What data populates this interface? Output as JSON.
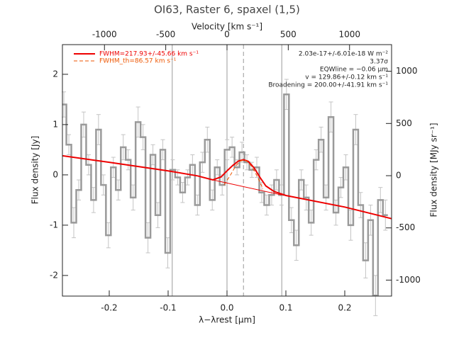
{
  "chart_data": {
    "type": "line",
    "title": "OI63, Raster 6, spaxel (1,5)",
    "x2label": "Velocity [km s⁻¹]",
    "xlabel": "λ−λrest [μm]",
    "ylabel": "Flux density [Jy]",
    "y2label": "Flux density [MJy sr⁻¹]",
    "xlim": [
      -0.2795,
      0.2795
    ],
    "ylim": [
      -2.41,
      2.59
    ],
    "x2lim": [
      -1343,
      1343
    ],
    "y2lim": [
      -1153,
      1255
    ],
    "xticks": [
      -0.2,
      -0.1,
      {
        "value": 0,
        "label": "0.0"
      },
      0.1,
      0.2
    ],
    "yticks": [
      -2,
      -1,
      0,
      1,
      2
    ],
    "x2ticks": [
      -1000,
      -500,
      0,
      500,
      1000
    ],
    "y2ticks": [
      -1000,
      -500,
      0,
      500,
      1000
    ],
    "vlines": [
      -0.093,
      0,
      0.093
    ],
    "center_line": 0.028,
    "annotations": [
      "2.03e-17+/-6.01e-18 W m⁻²",
      "3.37σ",
      "EQWline = −0.06 μm",
      "v = 129.86+/-0.12 km s⁻¹",
      "Broadening = 200.00+/-41.91 km s⁻¹"
    ],
    "series": [
      {
        "style": "step",
        "color": "#9a9a9a",
        "error_color": "#c4c4c4",
        "x": [
          -0.277,
          -0.2686,
          -0.2602,
          -0.2518,
          -0.2434,
          -0.235,
          -0.2266,
          -0.2182,
          -0.2098,
          -0.2014,
          -0.193,
          -0.1846,
          -0.1762,
          -0.1678,
          -0.1594,
          -0.151,
          -0.1426,
          -0.1342,
          -0.1258,
          -0.1174,
          -0.109,
          -0.1006,
          -0.0922,
          -0.0838,
          -0.0754,
          -0.067,
          -0.0586,
          -0.0502,
          -0.0418,
          -0.0334,
          -0.025,
          -0.0166,
          -0.0082,
          0.0002,
          0.0086,
          0.017,
          0.0254,
          0.0338,
          0.0422,
          0.0506,
          0.059,
          0.0674,
          0.0758,
          0.0842,
          0.0926,
          0.101,
          0.1094,
          0.1178,
          0.1262,
          0.1346,
          0.143,
          0.1514,
          0.1598,
          0.1682,
          0.1766,
          0.185,
          0.1934,
          0.2018,
          0.2102,
          0.2186,
          0.227,
          0.2354,
          0.2438,
          0.2522,
          0.2606,
          0.269
        ],
        "values": [
          1.4,
          0.6,
          -0.95,
          -0.3,
          1.0,
          0.2,
          -0.5,
          0.9,
          -0.2,
          -1.2,
          0.15,
          -0.3,
          0.55,
          0.3,
          -0.45,
          1.05,
          0.75,
          -1.25,
          0.4,
          -0.8,
          0.5,
          -1.55,
          0.1,
          -0.05,
          -0.35,
          -0.05,
          0.2,
          -0.6,
          0.25,
          0.7,
          -0.5,
          0.15,
          -0.2,
          0.5,
          0.55,
          0.15,
          0.45,
          0.25,
          0.1,
          0.15,
          -0.35,
          -0.6,
          -0.4,
          -0.1,
          -0.4,
          1.6,
          -0.9,
          -1.4,
          -0.1,
          -0.45,
          -0.95,
          0.3,
          0.7,
          -0.45,
          1.15,
          -0.75,
          -0.25,
          0.15,
          -1.0,
          0.9,
          -0.6,
          -1.7,
          -0.9,
          -2.4,
          -0.5,
          -0.8
        ],
        "errors": [
          0.25,
          0.2,
          0.3,
          0.2,
          0.25,
          0.2,
          0.25,
          0.3,
          0.2,
          0.25,
          0.2,
          0.2,
          0.25,
          0.2,
          0.25,
          0.3,
          0.25,
          0.3,
          0.2,
          0.25,
          0.2,
          0.3,
          0.2,
          0.15,
          0.2,
          0.15,
          0.2,
          0.2,
          0.2,
          0.25,
          0.2,
          0.15,
          0.2,
          0.2,
          0.2,
          0.15,
          0.2,
          0.15,
          0.15,
          0.2,
          0.2,
          0.2,
          0.2,
          0.2,
          0.2,
          0.3,
          0.25,
          0.3,
          0.2,
          0.25,
          0.25,
          0.2,
          0.25,
          0.25,
          0.3,
          0.25,
          0.2,
          0.25,
          0.3,
          0.3,
          0.25,
          0.35,
          0.3,
          0.4,
          0.25,
          0.3
        ]
      },
      {
        "style": "solid",
        "color": "#ee0000",
        "name": "FWHM=217.93+/-45.66 km s⁻¹",
        "x": [
          -0.2795,
          -0.2,
          -0.1,
          -0.05,
          -0.024,
          -0.01,
          0.0,
          0.01,
          0.02,
          0.028,
          0.036,
          0.046,
          0.056,
          0.066,
          0.08,
          0.1,
          0.2,
          0.2795
        ],
        "values": [
          0.38,
          0.25,
          0.08,
          -0.02,
          -0.1,
          -0.04,
          0.08,
          0.19,
          0.28,
          0.3,
          0.27,
          0.14,
          -0.05,
          -0.22,
          -0.33,
          -0.41,
          -0.64,
          -0.87
        ]
      },
      {
        "style": "dashed",
        "color": "#ee5500",
        "name": "FWHM_th=86.57 km s⁻¹",
        "x": [
          -0.005,
          0.005,
          0.015,
          0.022,
          0.028,
          0.034,
          0.041,
          0.051,
          0.061
        ],
        "values": [
          -0.2,
          -0.02,
          0.18,
          0.27,
          0.3,
          0.27,
          0.18,
          -0.02,
          -0.28
        ]
      },
      {
        "style": "thin",
        "color": "#ee0000",
        "x": [
          -0.024,
          0.093
        ],
        "values": [
          -0.1,
          -0.4
        ]
      }
    ]
  }
}
